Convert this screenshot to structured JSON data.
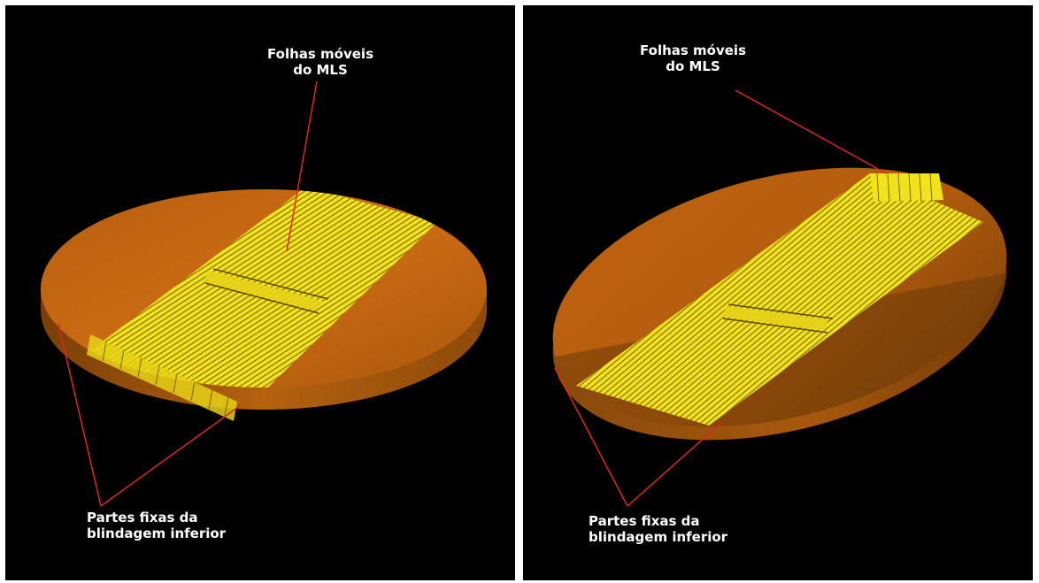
{
  "figure": {
    "panels": [
      {
        "id": "left",
        "label_moving_leaves": [
          "Folhas móveis",
          "do MLS"
        ],
        "label_fixed_parts": [
          "Partes fixas da",
          "blindagem inferior"
        ]
      },
      {
        "id": "right",
        "label_moving_leaves": [
          "Folhas móveis",
          "do MLS"
        ],
        "label_fixed_parts": [
          "Partes fixas da",
          "blindagem inferior"
        ]
      }
    ],
    "colors": {
      "background": "#000000",
      "divider": "#ffffff",
      "disc_top": "#c96a12",
      "disc_edge": "#8a4a0c",
      "leaves": "#f2e21a",
      "leaf_lines": "#6b5a08",
      "pointer": "#e0261f",
      "text": "#ffffff"
    }
  }
}
